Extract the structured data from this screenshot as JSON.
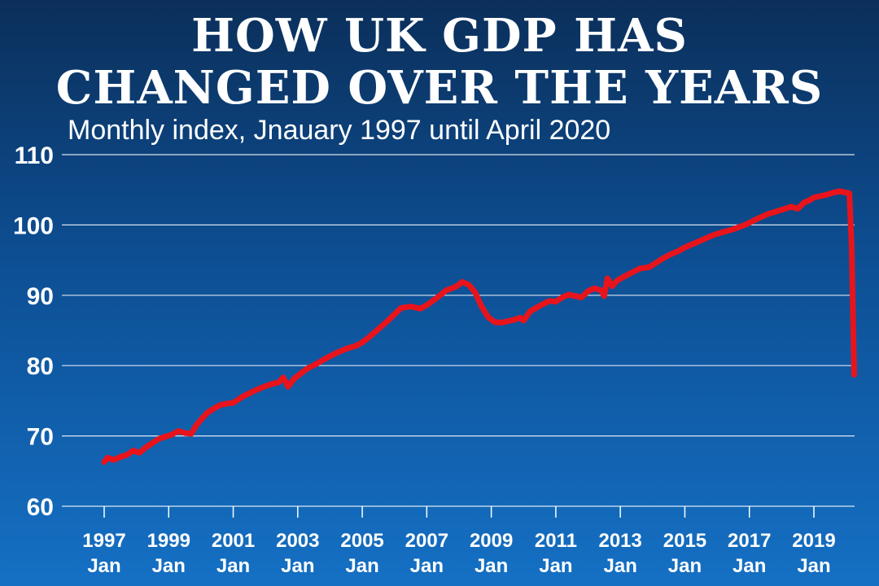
{
  "header": {
    "title_line1": "HOW UK GDP HAS",
    "title_line2": "CHANGED OVER THE YEARS",
    "subtitle": "Monthly index, Jnauary 1997 until April 2020"
  },
  "colors": {
    "line": "#e8141c",
    "grid": "#ffffff",
    "text": "#ffffff",
    "background_top": "#0b2f5a",
    "background_bottom": "#1570c4"
  },
  "chart_data": {
    "type": "line",
    "title": "HOW UK GDP HAS CHANGED OVER THE YEARS",
    "subtitle": "Monthly index, Jnauary 1997 until April 2020",
    "xlabel": "",
    "ylabel": "",
    "ylim": [
      60,
      110
    ],
    "xlim": [
      1997.0,
      2020.25
    ],
    "grid": true,
    "y_ticks": [
      "60",
      "70",
      "80",
      "90",
      "100",
      "110"
    ],
    "x_ticks": [
      {
        "year": "1997",
        "month": "Jan"
      },
      {
        "year": "1999",
        "month": "Jan"
      },
      {
        "year": "2001",
        "month": "Jan"
      },
      {
        "year": "2003",
        "month": "Jan"
      },
      {
        "year": "2005",
        "month": "Jan"
      },
      {
        "year": "2007",
        "month": "Jan"
      },
      {
        "year": "2009",
        "month": "Jan"
      },
      {
        "year": "2011",
        "month": "Jan"
      },
      {
        "year": "2013",
        "month": "Jan"
      },
      {
        "year": "2015",
        "month": "Jan"
      },
      {
        "year": "2017",
        "month": "Jan"
      },
      {
        "year": "2019",
        "month": "Jan"
      }
    ],
    "x": [
      1997.0,
      1997.1,
      1997.3,
      1997.5,
      1997.7,
      1997.9,
      1998.1,
      1998.3,
      1998.5,
      1998.7,
      1998.9,
      1999.1,
      1999.3,
      1999.5,
      1999.7,
      1999.85,
      2000.0,
      2000.2,
      2000.4,
      2000.6,
      2000.8,
      2001.0,
      2001.3,
      2001.6,
      2001.9,
      2002.2,
      2002.4,
      2002.55,
      2002.7,
      2002.9,
      2003.1,
      2003.3,
      2003.6,
      2003.9,
      2004.2,
      2004.5,
      2004.8,
      2005.0,
      2005.2,
      2005.5,
      2005.8,
      2006.0,
      2006.2,
      2006.5,
      2006.8,
      2007.0,
      2007.3,
      2007.6,
      2007.9,
      2008.1,
      2008.3,
      2008.5,
      2008.7,
      2008.9,
      2009.1,
      2009.3,
      2009.5,
      2009.7,
      2009.9,
      2010.0,
      2010.2,
      2010.5,
      2010.8,
      2011.0,
      2011.2,
      2011.4,
      2011.6,
      2011.8,
      2012.0,
      2012.2,
      2012.4,
      2012.5,
      2012.6,
      2012.75,
      2012.9,
      2013.1,
      2013.3,
      2013.6,
      2013.9,
      2014.2,
      2014.5,
      2014.8,
      2015.0,
      2015.3,
      2015.6,
      2015.9,
      2016.2,
      2016.5,
      2016.8,
      2017.0,
      2017.3,
      2017.6,
      2017.9,
      2018.1,
      2018.3,
      2018.5,
      2018.7,
      2018.9,
      2019.0,
      2019.2,
      2019.4,
      2019.6,
      2019.8,
      2020.0,
      2020.1,
      2020.17,
      2020.25
    ],
    "series": [
      {
        "values": [
          66.3,
          66.9,
          66.6,
          67.0,
          67.3,
          67.9,
          67.6,
          68.4,
          69.0,
          69.6,
          69.9,
          70.2,
          70.7,
          70.4,
          70.3,
          71.5,
          72.3,
          73.3,
          73.9,
          74.4,
          74.6,
          74.7,
          75.6,
          76.3,
          76.9,
          77.4,
          77.6,
          78.3,
          77.0,
          78.2,
          78.9,
          79.6,
          80.3,
          81.1,
          81.8,
          82.4,
          82.8,
          83.3,
          84.0,
          85.2,
          86.4,
          87.3,
          88.2,
          88.4,
          88.1,
          88.6,
          89.6,
          90.7,
          91.2,
          91.9,
          91.5,
          90.4,
          88.4,
          86.9,
          86.2,
          86.1,
          86.3,
          86.5,
          86.8,
          86.4,
          87.7,
          88.5,
          89.2,
          89.1,
          89.7,
          90.1,
          89.9,
          89.7,
          90.6,
          91.0,
          90.7,
          89.9,
          92.4,
          91.3,
          92.1,
          92.6,
          93.1,
          93.8,
          94.0,
          94.9,
          95.7,
          96.3,
          96.8,
          97.4,
          98.0,
          98.6,
          99.0,
          99.4,
          99.9,
          100.3,
          101.0,
          101.6,
          102.0,
          102.3,
          102.6,
          102.3,
          103.2,
          103.6,
          103.9,
          104.1,
          104.3,
          104.6,
          104.8,
          104.6,
          104.5,
          97.0,
          78.7
        ]
      }
    ]
  }
}
